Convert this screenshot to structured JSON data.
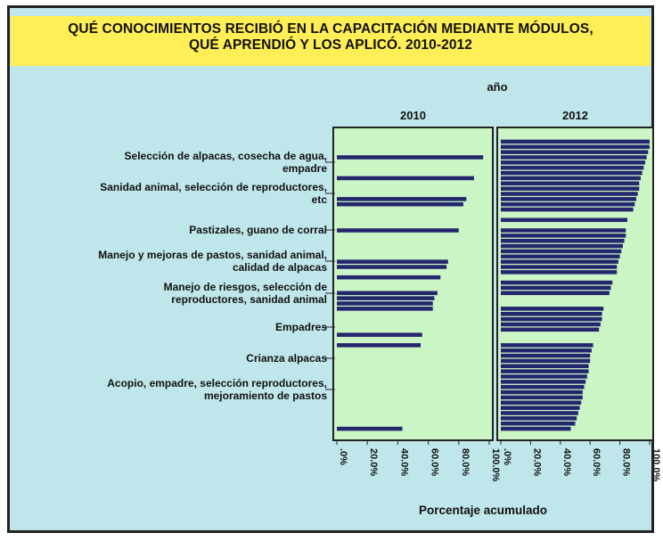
{
  "title": "QUÉ CONOCIMIENTOS RECIBIÓ EN LA CAPACITACIÓN MEDIANTE MÓDULOS,\nQUÉ APRENDIÓ Y LOS APLICÓ. 2010-2012",
  "colors": {
    "background": "#bfe6ea",
    "title_band": "#ffee55",
    "panel": "#ccf5c6",
    "bar": "#25276e",
    "frame": "#222222"
  },
  "chart_data": {
    "type": "bar",
    "orientation": "horizontal",
    "facet_title": "año",
    "xlabel": "Porcentaje acumulado",
    "xlim": [
      0,
      100
    ],
    "x_tick_labels": [
      ".0%",
      "20.0%",
      "40.0%",
      "60.0%",
      "80.0%",
      "100.0%"
    ],
    "category_labels": [
      "Selección de alpacas, cosecha de agua,\nempadre",
      "Sanidad animal, selección de reproductores,\netc",
      "Pastizales, guano de corral",
      "Manejo y mejoras de pastos, sanidad animal,\ncalidad de alpacas",
      "Manejo de riesgos, selección de\nreproductores, sanidad animal",
      "Empadres",
      "Crianza alpacas",
      "Acopio, empadre, selección reproductores,\nmejoramiento de pastos"
    ],
    "panels": [
      {
        "name": "2010",
        "values": [
          0,
          0,
          0,
          96,
          0,
          0,
          0,
          90,
          0,
          0,
          0,
          85,
          83,
          0,
          0,
          0,
          0,
          80,
          0,
          0,
          0,
          0,
          0,
          73,
          72,
          0,
          68,
          0,
          0,
          66,
          64,
          63,
          63,
          0,
          0,
          0,
          0,
          56,
          0,
          55,
          0,
          0,
          0,
          0,
          0,
          0,
          0,
          0,
          0,
          0,
          0,
          0,
          0,
          0,
          0,
          43
        ]
      },
      {
        "name": "2012",
        "values": [
          100,
          100,
          99,
          98,
          97,
          96,
          95,
          94,
          93,
          93,
          92,
          91,
          90,
          89,
          0,
          85,
          0,
          84,
          84,
          83,
          82,
          81,
          80,
          79,
          78,
          78,
          0,
          75,
          74,
          73,
          0,
          0,
          69,
          68,
          68,
          67,
          66,
          0,
          0,
          62,
          61,
          60,
          60,
          59,
          59,
          58,
          57,
          56,
          55,
          55,
          54,
          53,
          52,
          51,
          50,
          47
        ]
      }
    ]
  }
}
